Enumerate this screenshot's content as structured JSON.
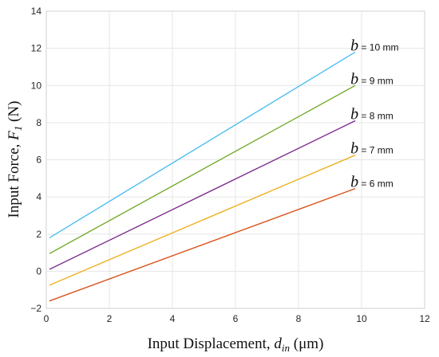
{
  "chart_data": {
    "type": "line",
    "xlabel": {
      "prefix": "Input Displacement, ",
      "sym": "d",
      "sub": "in",
      "suffix": " (μm)"
    },
    "ylabel": {
      "prefix": "Input Force, ",
      "sym": "F",
      "sub": "1",
      "suffix": " (N)"
    },
    "xlim": [
      0,
      12
    ],
    "ylim": [
      -2,
      14
    ],
    "xticks": [
      0,
      2,
      4,
      6,
      8,
      10,
      12
    ],
    "yticks": [
      -2,
      0,
      2,
      4,
      6,
      8,
      10,
      12,
      14
    ],
    "ytick_labels": [
      "−2",
      "0",
      "2",
      "4",
      "6",
      "8",
      "10",
      "12",
      "14"
    ],
    "grid": true,
    "series": [
      {
        "b": "b",
        "value": " = 10 mm",
        "color": "#4DBEEE",
        "x": [
          0.1,
          9.8
        ],
        "y": [
          1.8,
          11.8
        ]
      },
      {
        "b": "b",
        "value": " = 9 mm",
        "color": "#77AC30",
        "x": [
          0.1,
          9.8
        ],
        "y": [
          0.95,
          10.0
        ]
      },
      {
        "b": "b",
        "value": " = 8 mm",
        "color": "#7E2F8E",
        "x": [
          0.1,
          9.8
        ],
        "y": [
          0.1,
          8.1
        ]
      },
      {
        "b": "b",
        "value": " = 7 mm",
        "color": "#EDB120",
        "x": [
          0.1,
          9.8
        ],
        "y": [
          -0.75,
          6.25
        ]
      },
      {
        "b": "b",
        "value": " = 6 mm",
        "color": "#D95319",
        "x": [
          0.1,
          9.8
        ],
        "y": [
          -1.6,
          4.45
        ]
      }
    ]
  }
}
